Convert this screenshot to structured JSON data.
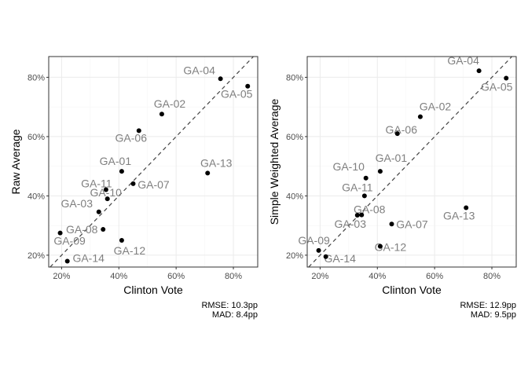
{
  "chart_data": [
    {
      "type": "scatter",
      "xlabel": "Clinton Vote",
      "ylabel": "Raw Average",
      "xlim": [
        0.155,
        0.885
      ],
      "ylim": [
        0.16,
        0.87
      ],
      "xticks": [
        0.2,
        0.4,
        0.6,
        0.8
      ],
      "xtick_labels": [
        "20%",
        "40%",
        "60%",
        "80%"
      ],
      "yticks": [
        0.2,
        0.4,
        0.6,
        0.8
      ],
      "ytick_labels": [
        "20%",
        "40%",
        "60%",
        "80%"
      ],
      "reference_line": "y = x (dashed)",
      "grid": true,
      "caption": [
        "RMSE: 10.3pp",
        "MAD: 8.4pp"
      ],
      "points": [
        {
          "label": "GA-01",
          "x": 0.41,
          "y": 0.483
        },
        {
          "label": "GA-02",
          "x": 0.55,
          "y": 0.676
        },
        {
          "label": "GA-03",
          "x": 0.33,
          "y": 0.346
        },
        {
          "label": "GA-04",
          "x": 0.755,
          "y": 0.795
        },
        {
          "label": "GA-05",
          "x": 0.85,
          "y": 0.77
        },
        {
          "label": "GA-06",
          "x": 0.47,
          "y": 0.62
        },
        {
          "label": "GA-07",
          "x": 0.45,
          "y": 0.441
        },
        {
          "label": "GA-08",
          "x": 0.345,
          "y": 0.287
        },
        {
          "label": "GA-09",
          "x": 0.195,
          "y": 0.275
        },
        {
          "label": "GA-10",
          "x": 0.36,
          "y": 0.39
        },
        {
          "label": "GA-11",
          "x": 0.355,
          "y": 0.421
        },
        {
          "label": "GA-12",
          "x": 0.41,
          "y": 0.25
        },
        {
          "label": "GA-13",
          "x": 0.71,
          "y": 0.477
        },
        {
          "label": "GA-14",
          "x": 0.22,
          "y": 0.18
        }
      ]
    },
    {
      "type": "scatter",
      "xlabel": "Clinton Vote",
      "ylabel": "Simple Weighted Average",
      "xlim": [
        0.155,
        0.885
      ],
      "ylim": [
        0.16,
        0.87
      ],
      "xticks": [
        0.2,
        0.4,
        0.6,
        0.8
      ],
      "xtick_labels": [
        "20%",
        "40%",
        "60%",
        "80%"
      ],
      "yticks": [
        0.2,
        0.4,
        0.6,
        0.8
      ],
      "ytick_labels": [
        "20%",
        "40%",
        "60%",
        "80%"
      ],
      "reference_line": "y = x (dashed)",
      "grid": true,
      "caption": [
        "RMSE: 12.9pp",
        "MAD: 9.5pp"
      ],
      "points": [
        {
          "label": "GA-01",
          "x": 0.41,
          "y": 0.483
        },
        {
          "label": "GA-02",
          "x": 0.55,
          "y": 0.667
        },
        {
          "label": "GA-03",
          "x": 0.33,
          "y": 0.335
        },
        {
          "label": "GA-04",
          "x": 0.755,
          "y": 0.822
        },
        {
          "label": "GA-05",
          "x": 0.85,
          "y": 0.797
        },
        {
          "label": "GA-06",
          "x": 0.47,
          "y": 0.61
        },
        {
          "label": "GA-07",
          "x": 0.45,
          "y": 0.305
        },
        {
          "label": "GA-08",
          "x": 0.345,
          "y": 0.336
        },
        {
          "label": "GA-09",
          "x": 0.195,
          "y": 0.216
        },
        {
          "label": "GA-10",
          "x": 0.36,
          "y": 0.46
        },
        {
          "label": "GA-11",
          "x": 0.355,
          "y": 0.4
        },
        {
          "label": "GA-12",
          "x": 0.41,
          "y": 0.23
        },
        {
          "label": "GA-13",
          "x": 0.71,
          "y": 0.36
        },
        {
          "label": "GA-14",
          "x": 0.22,
          "y": 0.195
        }
      ]
    }
  ]
}
